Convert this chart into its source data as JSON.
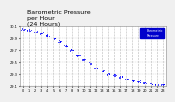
{
  "title": "Barometric Pressure\nper Hour\n(24 Hours)",
  "title_fontsize": 4.5,
  "background_color": "#f0f0f0",
  "plot_bg_color": "#ffffff",
  "line_color": "#0000ff",
  "marker": ".",
  "marker_size": 1.5,
  "hours": [
    0,
    1,
    2,
    3,
    4,
    5,
    6,
    7,
    8,
    9,
    10,
    11,
    12,
    13,
    14,
    15,
    16,
    17,
    18,
    19,
    20,
    21,
    22,
    23
  ],
  "pressure": [
    30.05,
    30.03,
    30.01,
    29.98,
    29.95,
    29.9,
    29.85,
    29.78,
    29.7,
    29.62,
    29.55,
    29.48,
    29.4,
    29.35,
    29.3,
    29.28,
    29.25,
    29.22,
    29.2,
    29.18,
    29.16,
    29.14,
    29.13,
    29.12
  ],
  "ylim": [
    29.1,
    30.1
  ],
  "ytick_labels": [
    "29.1",
    "29.3",
    "29.5",
    "29.7",
    "29.9",
    "30.1"
  ],
  "ytick_values": [
    29.1,
    29.3,
    29.5,
    29.7,
    29.9,
    30.1
  ],
  "xtick_labels": [
    "0",
    "1",
    "2",
    "3",
    "4",
    "5",
    "6",
    "7",
    "8",
    "9",
    "10",
    "11",
    "12",
    "13",
    "14",
    "15",
    "16",
    "17",
    "18",
    "19",
    "20",
    "21",
    "22",
    "23"
  ],
  "grid_color": "#999999",
  "grid_style": "--",
  "legend_label": "Barometric\nPressure",
  "legend_color": "#0000cc",
  "legend_bg": "#0000cc"
}
